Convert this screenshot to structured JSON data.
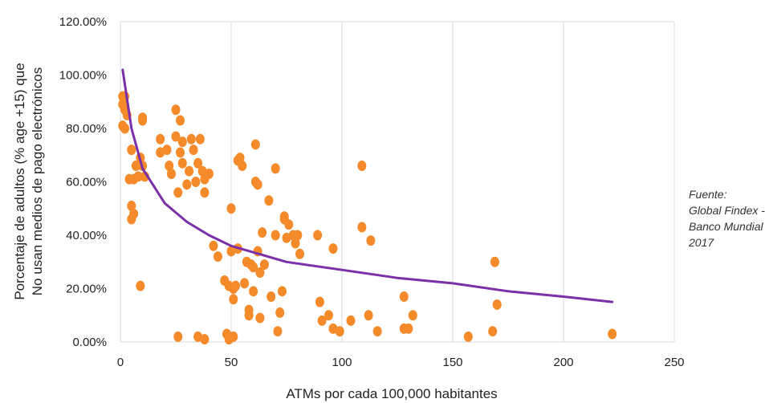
{
  "chart_data": {
    "type": "scatter",
    "title": "",
    "xlabel": "ATMs por cada 100,000 habitantes",
    "ylabel_lines": [
      "Porcentaje de adultos (% age +15) que",
      "No usan medios de pago electrónicos"
    ],
    "xlim": [
      0,
      250
    ],
    "ylim": [
      0,
      120
    ],
    "x_ticks": [
      0,
      50,
      100,
      150,
      200,
      250
    ],
    "x_tick_labels": [
      "0",
      "50",
      "100",
      "150",
      "200",
      "250"
    ],
    "y_ticks": [
      0,
      20,
      40,
      60,
      80,
      100,
      120
    ],
    "y_tick_labels": [
      "0.00%",
      "20.00%",
      "40.00%",
      "60.00%",
      "80.00%",
      "100.00%",
      "120.00%"
    ],
    "grid": "vertical",
    "colors": {
      "points": "#F58A2A",
      "trend": "#7B2FA8",
      "grid": "#d9d9d9"
    },
    "series": [
      {
        "points": [
          [
            1,
            92
          ],
          [
            2,
            92
          ],
          [
            1,
            89
          ],
          [
            2,
            87
          ],
          [
            3,
            85
          ],
          [
            1,
            81
          ],
          [
            2,
            80
          ],
          [
            4,
            61
          ],
          [
            6,
            61
          ],
          [
            8,
            62
          ],
          [
            5,
            72
          ],
          [
            7,
            66
          ],
          [
            9,
            69
          ],
          [
            10,
            66
          ],
          [
            11,
            62
          ],
          [
            5,
            51
          ],
          [
            6,
            48
          ],
          [
            5,
            46
          ],
          [
            10,
            83
          ],
          [
            10,
            84
          ],
          [
            9,
            21
          ],
          [
            18,
            76
          ],
          [
            18,
            71
          ],
          [
            21,
            72
          ],
          [
            22,
            66
          ],
          [
            23,
            63
          ],
          [
            25,
            87
          ],
          [
            25,
            77
          ],
          [
            27,
            83
          ],
          [
            28,
            75
          ],
          [
            27,
            71
          ],
          [
            28,
            67
          ],
          [
            26,
            56
          ],
          [
            31,
            64
          ],
          [
            30,
            59
          ],
          [
            32,
            76
          ],
          [
            33,
            72
          ],
          [
            34,
            60
          ],
          [
            35,
            67
          ],
          [
            36,
            76
          ],
          [
            37,
            64
          ],
          [
            38,
            56
          ],
          [
            38,
            61
          ],
          [
            40,
            63
          ],
          [
            26,
            2
          ],
          [
            35,
            2
          ],
          [
            38,
            1
          ],
          [
            42,
            36
          ],
          [
            44,
            32
          ],
          [
            47,
            23
          ],
          [
            49,
            21
          ],
          [
            50,
            50
          ],
          [
            50,
            34
          ],
          [
            51,
            20
          ],
          [
            51,
            16
          ],
          [
            52,
            21
          ],
          [
            53,
            35
          ],
          [
            53,
            68
          ],
          [
            54,
            69
          ],
          [
            55,
            66
          ],
          [
            56,
            22
          ],
          [
            57,
            30
          ],
          [
            58,
            12
          ],
          [
            58,
            10
          ],
          [
            59,
            29
          ],
          [
            60,
            28
          ],
          [
            60,
            19
          ],
          [
            61,
            74
          ],
          [
            61,
            60
          ],
          [
            62,
            59
          ],
          [
            62,
            34
          ],
          [
            63,
            26
          ],
          [
            63,
            9
          ],
          [
            64,
            41
          ],
          [
            65,
            29
          ],
          [
            67,
            53
          ],
          [
            68,
            17
          ],
          [
            70,
            40
          ],
          [
            70,
            65
          ],
          [
            71,
            4
          ],
          [
            72,
            11
          ],
          [
            73,
            19
          ],
          [
            74,
            46
          ],
          [
            74,
            47
          ],
          [
            75,
            39
          ],
          [
            76,
            44
          ],
          [
            78,
            40
          ],
          [
            79,
            37
          ],
          [
            80,
            40
          ],
          [
            81,
            33
          ],
          [
            48,
            3
          ],
          [
            49,
            1
          ],
          [
            51,
            2
          ],
          [
            89,
            40
          ],
          [
            90,
            15
          ],
          [
            91,
            8
          ],
          [
            94,
            10
          ],
          [
            96,
            35
          ],
          [
            96,
            5
          ],
          [
            99,
            4
          ],
          [
            104,
            8
          ],
          [
            109,
            66
          ],
          [
            109,
            43
          ],
          [
            112,
            10
          ],
          [
            113,
            38
          ],
          [
            116,
            4
          ],
          [
            128,
            17
          ],
          [
            128,
            5
          ],
          [
            130,
            5
          ],
          [
            132,
            10
          ],
          [
            157,
            2
          ],
          [
            168,
            4
          ],
          [
            169,
            30
          ],
          [
            170,
            14
          ],
          [
            222,
            3
          ]
        ]
      }
    ],
    "trendline": {
      "type": "logarithmic",
      "x_range": [
        1,
        222
      ],
      "points": [
        [
          1,
          102
        ],
        [
          5,
          80
        ],
        [
          10,
          65
        ],
        [
          20,
          52
        ],
        [
          30,
          45
        ],
        [
          40,
          40
        ],
        [
          50,
          36
        ],
        [
          75,
          30
        ],
        [
          100,
          27
        ],
        [
          125,
          24
        ],
        [
          150,
          22
        ],
        [
          175,
          19
        ],
        [
          200,
          17
        ],
        [
          222,
          15
        ]
      ]
    }
  },
  "source_note": {
    "lines": [
      "Fuente:",
      "Global Findex -",
      "Banco Mundial",
      "2017"
    ]
  }
}
